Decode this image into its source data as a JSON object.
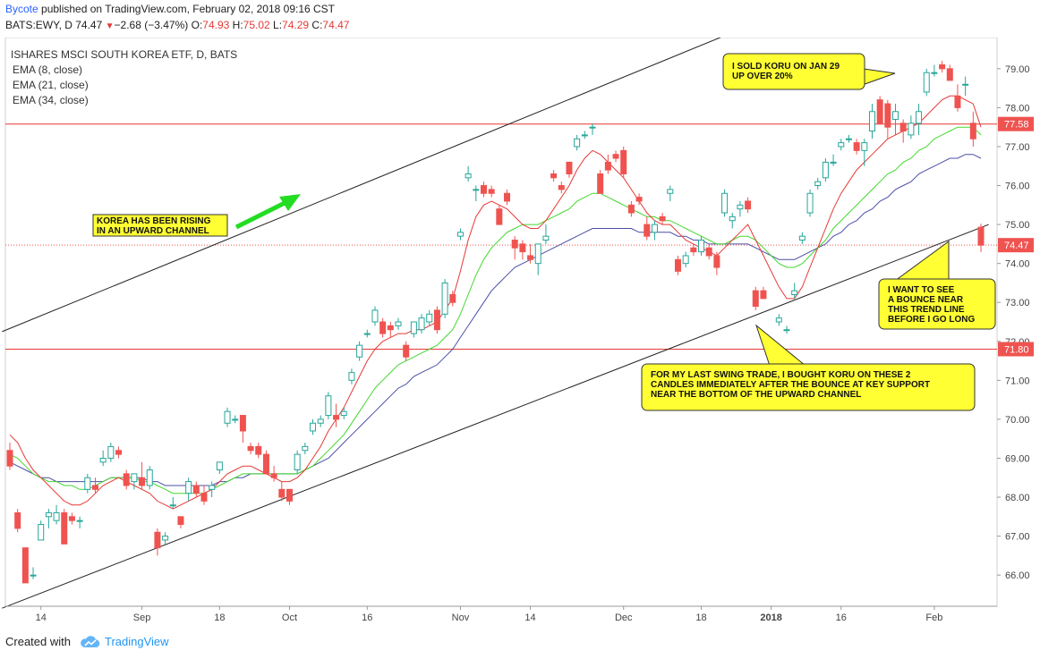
{
  "header": {
    "author": "Bycote",
    "published": "published on TradingView.com, February 02, 2018 09:16 CST",
    "symbol": "BATS:EWY, D",
    "last": "74.47",
    "change_arrow": "▼",
    "change": "−2.68 (−3.47%)",
    "o_label": "O:",
    "o": "74.93",
    "h_label": "H:",
    "h": "75.02",
    "l_label": "L:",
    "l": "74.29",
    "c_label": "C:",
    "c": "74.47"
  },
  "legend": {
    "title": "ISHARES MSCI SOUTH KOREA ETF, D, BATS",
    "ema8": "EMA (8, close)",
    "ema21": "EMA (21, close)",
    "ema34": "EMA (34, close)"
  },
  "footer": {
    "created_with": "Created with",
    "brand": "TradingView"
  },
  "colors": {
    "up": "#26a69a",
    "down": "#ef5350",
    "ema8": "#e53935",
    "ema21": "#43d82e",
    "ema34": "#4b4fa6",
    "hline": "#e53935",
    "channel": "#222222",
    "callout_bg": "#ffff33",
    "arrow": "#22dd22"
  },
  "chart_data": {
    "type": "candlestick",
    "title": "ISHARES MSCI SOUTH KOREA ETF, D, BATS",
    "y_range": [
      65.2,
      79.8
    ],
    "y_ticks": [
      "66.00",
      "67.00",
      "68.00",
      "69.00",
      "70.00",
      "71.00",
      "72.00",
      "73.00",
      "74.00",
      "75.00",
      "76.00",
      "77.00",
      "78.00",
      "79.00"
    ],
    "x_ticks": [
      {
        "label": "14",
        "index": 4
      },
      {
        "label": "Sep",
        "index": 17
      },
      {
        "label": "18",
        "index": 27
      },
      {
        "label": "Oct",
        "index": 36
      },
      {
        "label": "16",
        "index": 46
      },
      {
        "label": "Nov",
        "index": 58
      },
      {
        "label": "14",
        "index": 67
      },
      {
        "label": "Dec",
        "index": 79
      },
      {
        "label": "18",
        "index": 89
      },
      {
        "label": "2018",
        "index": 98
      },
      {
        "label": "16",
        "index": 107
      },
      {
        "label": "Feb",
        "index": 119
      }
    ],
    "horizontal_lines": [
      {
        "value": 77.58,
        "label": "77.58"
      },
      {
        "value": 71.8,
        "label": "71.80"
      }
    ],
    "last_price": {
      "value": 74.47,
      "label": "74.47"
    },
    "channel_lines": [
      {
        "start_index": -1,
        "start_value": 72.25,
        "end_index": 100,
        "end_value": 80.5
      },
      {
        "start_index": -1,
        "start_value": 65.15,
        "end_index": 126,
        "end_value": 75.0
      }
    ],
    "candles": [
      {
        "o": 69.2,
        "h": 69.4,
        "l": 68.7,
        "c": 68.8
      },
      {
        "o": 67.6,
        "h": 67.7,
        "l": 67.1,
        "c": 67.2
      },
      {
        "o": 66.7,
        "h": 66.7,
        "l": 65.8,
        "c": 65.8
      },
      {
        "o": 66.0,
        "h": 66.2,
        "l": 65.9,
        "c": 66.0
      },
      {
        "o": 66.9,
        "h": 67.4,
        "l": 66.9,
        "c": 67.3
      },
      {
        "o": 67.5,
        "h": 67.7,
        "l": 67.2,
        "c": 67.6
      },
      {
        "o": 67.4,
        "h": 67.8,
        "l": 67.3,
        "c": 67.6
      },
      {
        "o": 67.6,
        "h": 67.7,
        "l": 66.8,
        "c": 66.8
      },
      {
        "o": 67.5,
        "h": 67.6,
        "l": 67.3,
        "c": 67.4
      },
      {
        "o": 67.4,
        "h": 67.5,
        "l": 67.2,
        "c": 67.4
      },
      {
        "o": 68.2,
        "h": 68.6,
        "l": 68.1,
        "c": 68.5
      },
      {
        "o": 68.3,
        "h": 68.5,
        "l": 68.1,
        "c": 68.2
      },
      {
        "o": 68.9,
        "h": 69.2,
        "l": 68.8,
        "c": 69.0
      },
      {
        "o": 69.0,
        "h": 69.4,
        "l": 68.9,
        "c": 69.3
      },
      {
        "o": 69.2,
        "h": 69.3,
        "l": 69.0,
        "c": 69.1
      },
      {
        "o": 68.6,
        "h": 68.7,
        "l": 68.2,
        "c": 68.3
      },
      {
        "o": 68.4,
        "h": 68.6,
        "l": 68.2,
        "c": 68.6
      },
      {
        "o": 68.5,
        "h": 68.9,
        "l": 68.2,
        "c": 68.3
      },
      {
        "o": 68.3,
        "h": 68.8,
        "l": 68.2,
        "c": 68.7
      },
      {
        "o": 67.1,
        "h": 67.2,
        "l": 66.5,
        "c": 66.7
      },
      {
        "o": 66.9,
        "h": 67.1,
        "l": 66.8,
        "c": 67.0
      },
      {
        "o": 67.8,
        "h": 68.0,
        "l": 67.7,
        "c": 67.8
      },
      {
        "o": 67.5,
        "h": 67.5,
        "l": 67.2,
        "c": 67.3
      },
      {
        "o": 68.1,
        "h": 68.5,
        "l": 67.9,
        "c": 68.4
      },
      {
        "o": 68.3,
        "h": 68.4,
        "l": 68.0,
        "c": 68.1
      },
      {
        "o": 68.1,
        "h": 68.3,
        "l": 67.8,
        "c": 67.9
      },
      {
        "o": 68.2,
        "h": 68.4,
        "l": 68.0,
        "c": 68.3
      },
      {
        "o": 68.7,
        "h": 68.9,
        "l": 68.6,
        "c": 68.9
      },
      {
        "o": 69.9,
        "h": 70.3,
        "l": 69.8,
        "c": 70.2
      },
      {
        "o": 70.0,
        "h": 70.1,
        "l": 69.9,
        "c": 70.0
      },
      {
        "o": 70.1,
        "h": 70.1,
        "l": 69.4,
        "c": 69.7
      },
      {
        "o": 69.3,
        "h": 69.4,
        "l": 69.1,
        "c": 69.2
      },
      {
        "o": 69.3,
        "h": 69.4,
        "l": 69.0,
        "c": 69.1
      },
      {
        "o": 69.1,
        "h": 69.2,
        "l": 68.6,
        "c": 68.6
      },
      {
        "o": 68.6,
        "h": 68.8,
        "l": 68.4,
        "c": 68.5
      },
      {
        "o": 68.2,
        "h": 68.4,
        "l": 67.9,
        "c": 68.0
      },
      {
        "o": 68.2,
        "h": 68.2,
        "l": 67.8,
        "c": 67.9
      },
      {
        "o": 68.7,
        "h": 69.2,
        "l": 68.6,
        "c": 69.1
      },
      {
        "o": 69.2,
        "h": 69.4,
        "l": 69.1,
        "c": 69.3
      },
      {
        "o": 69.7,
        "h": 70.0,
        "l": 69.6,
        "c": 69.9
      },
      {
        "o": 69.9,
        "h": 70.1,
        "l": 69.8,
        "c": 70.0
      },
      {
        "o": 70.1,
        "h": 70.7,
        "l": 70.0,
        "c": 70.6
      },
      {
        "o": 70.1,
        "h": 70.4,
        "l": 69.8,
        "c": 70.0
      },
      {
        "o": 70.1,
        "h": 70.3,
        "l": 70.0,
        "c": 70.2
      },
      {
        "o": 71.0,
        "h": 71.3,
        "l": 70.9,
        "c": 71.2
      },
      {
        "o": 71.6,
        "h": 72.0,
        "l": 71.5,
        "c": 71.9
      },
      {
        "o": 72.2,
        "h": 72.3,
        "l": 72.1,
        "c": 72.2
      },
      {
        "o": 72.5,
        "h": 72.9,
        "l": 72.4,
        "c": 72.8
      },
      {
        "o": 72.5,
        "h": 72.6,
        "l": 72.1,
        "c": 72.2
      },
      {
        "o": 72.4,
        "h": 72.5,
        "l": 72.1,
        "c": 72.3
      },
      {
        "o": 72.4,
        "h": 72.6,
        "l": 72.3,
        "c": 72.5
      },
      {
        "o": 71.9,
        "h": 72.0,
        "l": 71.5,
        "c": 71.6
      },
      {
        "o": 72.2,
        "h": 72.5,
        "l": 72.1,
        "c": 72.5
      },
      {
        "o": 72.3,
        "h": 72.7,
        "l": 72.2,
        "c": 72.6
      },
      {
        "o": 72.5,
        "h": 72.8,
        "l": 72.4,
        "c": 72.7
      },
      {
        "o": 72.8,
        "h": 72.9,
        "l": 72.2,
        "c": 72.3
      },
      {
        "o": 72.7,
        "h": 73.6,
        "l": 72.6,
        "c": 73.5
      },
      {
        "o": 73.2,
        "h": 73.3,
        "l": 72.9,
        "c": 73.0
      },
      {
        "o": 74.7,
        "h": 74.9,
        "l": 74.6,
        "c": 74.8
      },
      {
        "o": 76.2,
        "h": 76.5,
        "l": 76.1,
        "c": 76.3
      },
      {
        "o": 75.9,
        "h": 76.0,
        "l": 75.6,
        "c": 75.9
      },
      {
        "o": 76.0,
        "h": 76.1,
        "l": 75.7,
        "c": 75.8
      },
      {
        "o": 75.9,
        "h": 76.0,
        "l": 75.7,
        "c": 75.8
      },
      {
        "o": 75.4,
        "h": 75.5,
        "l": 75.0,
        "c": 75.0
      },
      {
        "o": 75.8,
        "h": 75.9,
        "l": 75.5,
        "c": 75.6
      },
      {
        "o": 74.6,
        "h": 74.7,
        "l": 74.1,
        "c": 74.4
      },
      {
        "o": 74.5,
        "h": 74.6,
        "l": 74.1,
        "c": 74.3
      },
      {
        "o": 74.2,
        "h": 74.5,
        "l": 74.0,
        "c": 74.1
      },
      {
        "o": 74.0,
        "h": 74.5,
        "l": 73.7,
        "c": 74.5
      },
      {
        "o": 74.6,
        "h": 75.0,
        "l": 74.5,
        "c": 74.7
      },
      {
        "o": 76.3,
        "h": 76.4,
        "l": 76.1,
        "c": 76.2
      },
      {
        "o": 76.0,
        "h": 76.1,
        "l": 75.8,
        "c": 75.9
      },
      {
        "o": 76.6,
        "h": 76.6,
        "l": 76.2,
        "c": 76.3
      },
      {
        "o": 77.0,
        "h": 77.3,
        "l": 76.9,
        "c": 77.2
      },
      {
        "o": 77.3,
        "h": 77.4,
        "l": 77.2,
        "c": 77.3
      },
      {
        "o": 77.5,
        "h": 77.6,
        "l": 77.3,
        "c": 77.5
      },
      {
        "o": 76.3,
        "h": 76.4,
        "l": 75.8,
        "c": 75.8
      },
      {
        "o": 76.6,
        "h": 76.8,
        "l": 76.3,
        "c": 76.4
      },
      {
        "o": 76.8,
        "h": 76.9,
        "l": 76.6,
        "c": 76.7
      },
      {
        "o": 76.9,
        "h": 77.0,
        "l": 76.2,
        "c": 76.3
      },
      {
        "o": 75.5,
        "h": 75.6,
        "l": 75.2,
        "c": 75.3
      },
      {
        "o": 75.7,
        "h": 75.8,
        "l": 75.5,
        "c": 75.6
      },
      {
        "o": 75.0,
        "h": 75.2,
        "l": 74.6,
        "c": 74.7
      },
      {
        "o": 74.8,
        "h": 75.1,
        "l": 74.6,
        "c": 75.0
      },
      {
        "o": 75.2,
        "h": 75.3,
        "l": 75.0,
        "c": 75.1
      },
      {
        "o": 75.8,
        "h": 76.0,
        "l": 75.6,
        "c": 75.9
      },
      {
        "o": 74.1,
        "h": 74.2,
        "l": 73.7,
        "c": 73.8
      },
      {
        "o": 74.0,
        "h": 74.3,
        "l": 73.9,
        "c": 74.2
      },
      {
        "o": 74.4,
        "h": 74.5,
        "l": 74.2,
        "c": 74.3
      },
      {
        "o": 74.3,
        "h": 74.7,
        "l": 74.2,
        "c": 74.6
      },
      {
        "o": 74.4,
        "h": 74.5,
        "l": 74.1,
        "c": 74.2
      },
      {
        "o": 74.2,
        "h": 74.3,
        "l": 73.7,
        "c": 73.9
      },
      {
        "o": 75.3,
        "h": 75.9,
        "l": 75.2,
        "c": 75.8
      },
      {
        "o": 75.1,
        "h": 75.3,
        "l": 74.9,
        "c": 75.2
      },
      {
        "o": 75.4,
        "h": 75.6,
        "l": 75.2,
        "c": 75.5
      },
      {
        "o": 75.6,
        "h": 75.7,
        "l": 75.3,
        "c": 75.4
      },
      {
        "o": 73.3,
        "h": 73.4,
        "l": 72.8,
        "c": 72.9
      },
      {
        "o": 73.3,
        "h": 73.4,
        "l": 73.1,
        "c": 73.1
      },
      {
        "o": 72.0,
        "h": 72.1,
        "l": 71.8,
        "c": 71.9
      },
      {
        "o": 72.5,
        "h": 72.7,
        "l": 72.4,
        "c": 72.6
      },
      {
        "o": 72.3,
        "h": 72.4,
        "l": 72.2,
        "c": 72.3
      },
      {
        "o": 73.2,
        "h": 73.5,
        "l": 73.1,
        "c": 73.3
      },
      {
        "o": 74.6,
        "h": 74.8,
        "l": 74.5,
        "c": 74.7
      },
      {
        "o": 75.3,
        "h": 75.9,
        "l": 75.2,
        "c": 75.8
      },
      {
        "o": 76.0,
        "h": 76.2,
        "l": 75.9,
        "c": 76.1
      },
      {
        "o": 76.2,
        "h": 76.7,
        "l": 76.1,
        "c": 76.6
      },
      {
        "o": 76.6,
        "h": 76.8,
        "l": 76.5,
        "c": 76.6
      },
      {
        "o": 77.0,
        "h": 77.2,
        "l": 76.9,
        "c": 77.1
      },
      {
        "o": 77.2,
        "h": 77.3,
        "l": 77.1,
        "c": 77.2
      },
      {
        "o": 77.1,
        "h": 77.2,
        "l": 76.8,
        "c": 76.9
      },
      {
        "o": 76.9,
        "h": 77.2,
        "l": 76.5,
        "c": 77.1
      },
      {
        "o": 77.4,
        "h": 78.1,
        "l": 77.2,
        "c": 77.9
      },
      {
        "o": 78.2,
        "h": 78.3,
        "l": 77.6,
        "c": 77.6
      },
      {
        "o": 78.1,
        "h": 78.2,
        "l": 77.2,
        "c": 77.5
      },
      {
        "o": 77.7,
        "h": 78.1,
        "l": 77.3,
        "c": 77.9
      },
      {
        "o": 77.6,
        "h": 77.7,
        "l": 77.1,
        "c": 77.4
      },
      {
        "o": 77.3,
        "h": 77.8,
        "l": 77.2,
        "c": 77.6
      },
      {
        "o": 77.6,
        "h": 78.1,
        "l": 77.3,
        "c": 77.9
      },
      {
        "o": 78.4,
        "h": 79.0,
        "l": 78.3,
        "c": 78.9
      },
      {
        "o": 78.9,
        "h": 79.1,
        "l": 78.8,
        "c": 78.9
      },
      {
        "o": 79.1,
        "h": 79.2,
        "l": 78.9,
        "c": 79.0
      },
      {
        "o": 79.0,
        "h": 79.1,
        "l": 78.7,
        "c": 78.7
      },
      {
        "o": 78.3,
        "h": 78.6,
        "l": 77.9,
        "c": 78.0
      },
      {
        "o": 78.6,
        "h": 78.8,
        "l": 78.3,
        "c": 78.6
      },
      {
        "o": 77.6,
        "h": 77.9,
        "l": 77.0,
        "c": 77.2
      },
      {
        "o": 74.93,
        "h": 75.02,
        "l": 74.29,
        "c": 74.47
      }
    ],
    "ema8": [
      69.6,
      69.4,
      69.0,
      68.7,
      68.5,
      68.3,
      68.1,
      67.9,
      67.8,
      67.8,
      67.9,
      68.1,
      68.3,
      68.4,
      68.5,
      68.4,
      68.3,
      68.2,
      68.1,
      67.9,
      67.8,
      67.7,
      67.8,
      67.9,
      68.0,
      68.1,
      68.2,
      68.4,
      68.6,
      68.7,
      68.8,
      68.8,
      68.7,
      68.6,
      68.5,
      68.4,
      68.4,
      68.5,
      68.7,
      69.0,
      69.3,
      69.7,
      70.0,
      70.3,
      70.7,
      71.1,
      71.5,
      71.8,
      72.0,
      72.1,
      72.2,
      72.2,
      72.3,
      72.3,
      72.4,
      72.5,
      72.8,
      73.1,
      73.8,
      74.6,
      75.2,
      75.5,
      75.6,
      75.5,
      75.4,
      75.2,
      75.0,
      74.9,
      74.9,
      75.1,
      75.4,
      75.7,
      76.0,
      76.4,
      76.7,
      76.9,
      76.8,
      76.6,
      76.4,
      76.2,
      75.9,
      75.6,
      75.3,
      75.1,
      75.0,
      75.0,
      74.8,
      74.6,
      74.5,
      74.4,
      74.3,
      74.2,
      74.4,
      74.6,
      74.8,
      75.0,
      74.6,
      74.2,
      73.8,
      73.4,
      73.1,
      73.1,
      73.4,
      73.9,
      74.4,
      74.9,
      75.4,
      75.8,
      76.1,
      76.4,
      76.6,
      76.8,
      77.0,
      77.2,
      77.3,
      77.4,
      77.5,
      77.6,
      77.8,
      78.0,
      78.2,
      78.3,
      78.3,
      78.2,
      78.1,
      77.5
    ],
    "ema21": [
      69.1,
      69.0,
      68.8,
      68.6,
      68.5,
      68.4,
      68.4,
      68.3,
      68.3,
      68.2,
      68.2,
      68.3,
      68.4,
      68.5,
      68.5,
      68.5,
      68.5,
      68.4,
      68.4,
      68.3,
      68.2,
      68.1,
      68.1,
      68.1,
      68.1,
      68.1,
      68.2,
      68.3,
      68.4,
      68.5,
      68.6,
      68.6,
      68.6,
      68.6,
      68.6,
      68.6,
      68.6,
      68.6,
      68.7,
      68.8,
      69.0,
      69.2,
      69.4,
      69.6,
      69.9,
      70.2,
      70.5,
      70.8,
      71.0,
      71.2,
      71.4,
      71.5,
      71.6,
      71.7,
      71.8,
      71.9,
      72.1,
      72.3,
      72.7,
      73.2,
      73.7,
      74.1,
      74.4,
      74.6,
      74.8,
      74.9,
      75.0,
      75.0,
      75.0,
      75.1,
      75.2,
      75.3,
      75.4,
      75.6,
      75.7,
      75.8,
      75.8,
      75.7,
      75.6,
      75.5,
      75.4,
      75.3,
      75.2,
      75.2,
      75.1,
      75.1,
      75.0,
      74.9,
      74.8,
      74.7,
      74.6,
      74.5,
      74.5,
      74.6,
      74.7,
      74.7,
      74.6,
      74.4,
      74.2,
      74.0,
      73.9,
      73.9,
      74.0,
      74.2,
      74.4,
      74.6,
      74.9,
      75.1,
      75.3,
      75.5,
      75.7,
      75.9,
      76.1,
      76.3,
      76.4,
      76.6,
      76.7,
      76.9,
      77.0,
      77.2,
      77.3,
      77.4,
      77.5,
      77.5,
      77.5,
      77.3
    ],
    "ema34": [
      68.9,
      68.8,
      68.7,
      68.6,
      68.5,
      68.5,
      68.4,
      68.4,
      68.4,
      68.4,
      68.4,
      68.4,
      68.4,
      68.5,
      68.5,
      68.5,
      68.5,
      68.5,
      68.4,
      68.4,
      68.3,
      68.3,
      68.3,
      68.3,
      68.3,
      68.3,
      68.3,
      68.4,
      68.4,
      68.5,
      68.5,
      68.6,
      68.6,
      68.6,
      68.6,
      68.6,
      68.6,
      68.6,
      68.7,
      68.8,
      68.9,
      69.0,
      69.2,
      69.4,
      69.6,
      69.8,
      70.0,
      70.2,
      70.4,
      70.6,
      70.8,
      70.9,
      71.1,
      71.2,
      71.3,
      71.4,
      71.6,
      71.8,
      72.1,
      72.4,
      72.7,
      73.0,
      73.3,
      73.5,
      73.7,
      73.9,
      74.0,
      74.1,
      74.2,
      74.3,
      74.4,
      74.5,
      74.6,
      74.7,
      74.8,
      74.9,
      74.9,
      74.9,
      74.9,
      74.9,
      74.9,
      74.8,
      74.8,
      74.8,
      74.8,
      74.8,
      74.7,
      74.7,
      74.6,
      74.6,
      74.5,
      74.5,
      74.5,
      74.5,
      74.5,
      74.5,
      74.4,
      74.3,
      74.2,
      74.1,
      74.1,
      74.1,
      74.2,
      74.3,
      74.4,
      74.5,
      74.7,
      74.8,
      75.0,
      75.1,
      75.3,
      75.4,
      75.6,
      75.7,
      75.9,
      76.0,
      76.1,
      76.3,
      76.4,
      76.5,
      76.6,
      76.7,
      76.7,
      76.8,
      76.8,
      76.7
    ]
  },
  "annotations": [
    {
      "text": [
        "KOREA HAS BEEN RISING",
        "IN AN UPWARD CHANNEL"
      ]
    },
    {
      "text": [
        "I SOLD KORU ON JAN 29",
        "UP OVER 20%"
      ]
    },
    {
      "text": [
        "I WANT TO SEE",
        "A BOUNCE NEAR",
        "THIS TREND LINE",
        "BEFORE I GO LONG"
      ]
    },
    {
      "text": [
        "FOR MY LAST SWING TRADE, I BOUGHT KORU ON THESE 2",
        "CANDLES IMMEDIATELY AFTER THE BOUNCE AT KEY SUPPORT",
        "NEAR THE BOTTOM OF THE UPWARD CHANNEL"
      ]
    }
  ]
}
